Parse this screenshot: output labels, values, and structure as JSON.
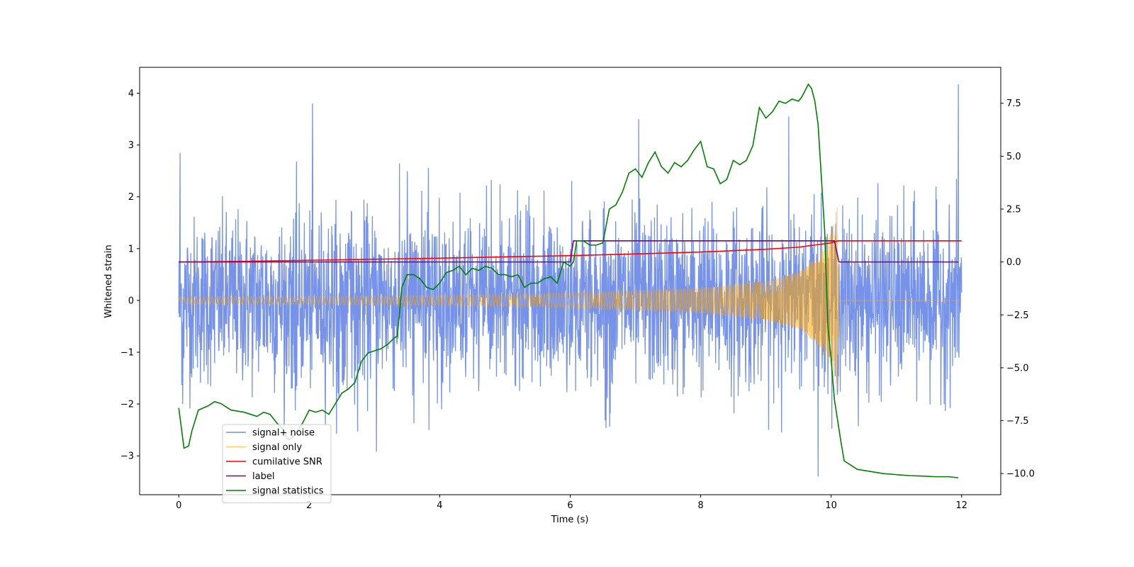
{
  "chart_data": {
    "type": "line",
    "title": "",
    "xlabel": "Time (s)",
    "ylabel": "Whitened strain",
    "ylabel_right": "",
    "xlim": [
      -0.6,
      12.6
    ],
    "ylim": [
      -3.75,
      4.5
    ],
    "ylim_right": [
      -11.0,
      9.2
    ],
    "x_ticks": [
      {
        "value": 0,
        "label": "0"
      },
      {
        "value": 2,
        "label": "2"
      },
      {
        "value": 4,
        "label": "4"
      },
      {
        "value": 6,
        "label": "6"
      },
      {
        "value": 8,
        "label": "8"
      },
      {
        "value": 10,
        "label": "10"
      },
      {
        "value": 12,
        "label": "12"
      }
    ],
    "y_ticks": [
      {
        "value": -3,
        "label": "−3"
      },
      {
        "value": -2,
        "label": "−2"
      },
      {
        "value": -1,
        "label": "−1"
      },
      {
        "value": 0,
        "label": "0"
      },
      {
        "value": 1,
        "label": "1"
      },
      {
        "value": 2,
        "label": "2"
      },
      {
        "value": 3,
        "label": "3"
      },
      {
        "value": 4,
        "label": "4"
      }
    ],
    "y_ticks_right": [
      {
        "value": -10.0,
        "label": "−10.0"
      },
      {
        "value": -7.5,
        "label": "−7.5"
      },
      {
        "value": -5.0,
        "label": "−5.0"
      },
      {
        "value": -2.5,
        "label": "−2.5"
      },
      {
        "value": 0.0,
        "label": "0.0"
      },
      {
        "value": 2.5,
        "label": "2.5"
      },
      {
        "value": 5.0,
        "label": "5.0"
      },
      {
        "value": 7.5,
        "label": "7.5"
      }
    ],
    "grid": false,
    "legend_position": "lower-left",
    "series": [
      {
        "name": "signal+ noise",
        "axis": "left",
        "color": "#4169e1",
        "x_range": [
          0,
          12
        ],
        "noise_envelope": [
          {
            "x": 0.0,
            "low": -1.4,
            "high": 1.45
          },
          {
            "x": 2.0,
            "low": -1.5,
            "high": 1.5
          },
          {
            "x": 4.0,
            "low": -1.5,
            "high": 1.5
          },
          {
            "x": 6.0,
            "low": -1.5,
            "high": 1.5
          },
          {
            "x": 8.0,
            "low": -1.5,
            "high": 1.5
          },
          {
            "x": 10.0,
            "low": -1.5,
            "high": 1.5
          },
          {
            "x": 12.0,
            "low": -1.45,
            "high": 1.45
          }
        ],
        "peak_values": [
          {
            "x": 0.02,
            "y": 2.85
          },
          {
            "x": 0.06,
            "y": -2.0
          },
          {
            "x": 2.05,
            "y": 3.8
          },
          {
            "x": 3.03,
            "y": -2.92
          },
          {
            "x": 7.05,
            "y": 3.5
          },
          {
            "x": 9.35,
            "y": 3.55
          },
          {
            "x": 9.8,
            "y": -3.4
          },
          {
            "x": 11.95,
            "y": 4.17
          }
        ]
      },
      {
        "name": "signal only",
        "axis": "left",
        "color": "#ffa500",
        "envelope": [
          {
            "x": 0.0,
            "amp": 0.07
          },
          {
            "x": 2.0,
            "amp": 0.08
          },
          {
            "x": 4.0,
            "amp": 0.1
          },
          {
            "x": 6.0,
            "amp": 0.14
          },
          {
            "x": 8.0,
            "amp": 0.24
          },
          {
            "x": 9.0,
            "amp": 0.38
          },
          {
            "x": 9.5,
            "amp": 0.55
          },
          {
            "x": 9.8,
            "amp": 0.85
          },
          {
            "x": 10.0,
            "amp": 1.3
          },
          {
            "x": 10.1,
            "amp": 1.85
          },
          {
            "x": 10.11,
            "amp": 0.0
          },
          {
            "x": 12.0,
            "amp": 0.0
          }
        ]
      },
      {
        "name": "cumilative SNR",
        "axis": "right",
        "color": "#ff0000",
        "x": [
          0,
          1,
          2,
          3,
          4,
          5,
          6,
          7,
          8,
          9,
          9.5,
          10.0,
          10.1,
          12.0
        ],
        "values": [
          0.0,
          0.03,
          0.08,
          0.13,
          0.18,
          0.24,
          0.3,
          0.38,
          0.47,
          0.6,
          0.7,
          0.9,
          1.0,
          1.0
        ]
      },
      {
        "name": "label",
        "axis": "right",
        "color": "#800080",
        "x": [
          0,
          6.0,
          6.05,
          10.05,
          10.12,
          11.95
        ],
        "values": [
          0.0,
          0.0,
          1.0,
          1.0,
          0.0,
          0.0
        ]
      },
      {
        "name": "signal statistics",
        "axis": "right",
        "color": "#008000",
        "x": [
          0.0,
          0.08,
          0.15,
          0.2,
          0.3,
          0.45,
          0.55,
          0.65,
          0.8,
          1.0,
          1.1,
          1.2,
          1.3,
          1.4,
          1.5,
          1.6,
          1.65,
          1.7,
          1.8,
          1.9,
          2.0,
          2.1,
          2.2,
          2.3,
          2.4,
          2.5,
          2.6,
          2.7,
          2.8,
          2.9,
          3.0,
          3.1,
          3.2,
          3.3,
          3.35,
          3.42,
          3.5,
          3.6,
          3.7,
          3.8,
          3.9,
          4.0,
          4.1,
          4.2,
          4.3,
          4.4,
          4.5,
          4.6,
          4.7,
          4.8,
          4.9,
          5.0,
          5.1,
          5.2,
          5.3,
          5.4,
          5.5,
          5.6,
          5.7,
          5.8,
          5.9,
          6.0,
          6.05,
          6.1,
          6.2,
          6.3,
          6.4,
          6.5,
          6.6,
          6.7,
          6.8,
          6.9,
          7.0,
          7.1,
          7.2,
          7.3,
          7.4,
          7.5,
          7.6,
          7.7,
          7.8,
          7.9,
          8.0,
          8.1,
          8.2,
          8.3,
          8.4,
          8.5,
          8.6,
          8.7,
          8.8,
          8.9,
          9.0,
          9.1,
          9.2,
          9.3,
          9.4,
          9.5,
          9.55,
          9.6,
          9.65,
          9.7,
          9.75,
          9.8,
          9.85,
          9.9,
          9.95,
          10.0,
          10.05,
          10.1,
          10.15,
          10.2,
          10.3,
          10.4,
          10.5,
          10.6,
          10.8,
          11.0,
          11.2,
          11.4,
          11.6,
          11.8,
          11.95
        ],
        "values": [
          -6.9,
          -8.8,
          -8.7,
          -8.0,
          -7.0,
          -6.8,
          -6.6,
          -6.7,
          -7.0,
          -7.1,
          -7.2,
          -7.3,
          -7.1,
          -7.2,
          -7.6,
          -7.9,
          -8.3,
          -8.4,
          -8.1,
          -7.6,
          -7.0,
          -7.1,
          -7.0,
          -7.2,
          -6.7,
          -6.2,
          -6.0,
          -5.7,
          -4.7,
          -4.3,
          -4.2,
          -4.1,
          -3.9,
          -3.6,
          -3.5,
          -1.2,
          -0.6,
          -0.6,
          -0.8,
          -1.2,
          -1.3,
          -1.0,
          -0.5,
          -0.4,
          -0.2,
          -0.6,
          -0.3,
          -0.4,
          -0.2,
          -0.3,
          -0.6,
          -0.6,
          -0.7,
          -0.6,
          -1.2,
          -1.0,
          -1.0,
          -0.8,
          -0.7,
          -1.0,
          0.0,
          -0.2,
          0.0,
          1.0,
          1.0,
          0.8,
          0.8,
          0.9,
          2.5,
          2.7,
          3.3,
          4.2,
          4.4,
          4.0,
          4.7,
          5.2,
          4.5,
          4.2,
          4.7,
          4.5,
          4.8,
          5.3,
          5.7,
          4.5,
          4.4,
          3.7,
          3.9,
          4.8,
          4.6,
          4.8,
          5.5,
          7.3,
          6.8,
          7.1,
          7.6,
          7.5,
          7.7,
          7.6,
          7.8,
          8.1,
          8.4,
          8.2,
          7.6,
          6.5,
          4.0,
          1.5,
          -3.0,
          -4.6,
          -6.5,
          -7.5,
          -8.5,
          -9.4,
          -9.6,
          -9.8,
          -9.85,
          -9.9,
          -10.0,
          -10.05,
          -10.1,
          -10.12,
          -10.15,
          -10.15,
          -10.2
        ]
      }
    ]
  }
}
